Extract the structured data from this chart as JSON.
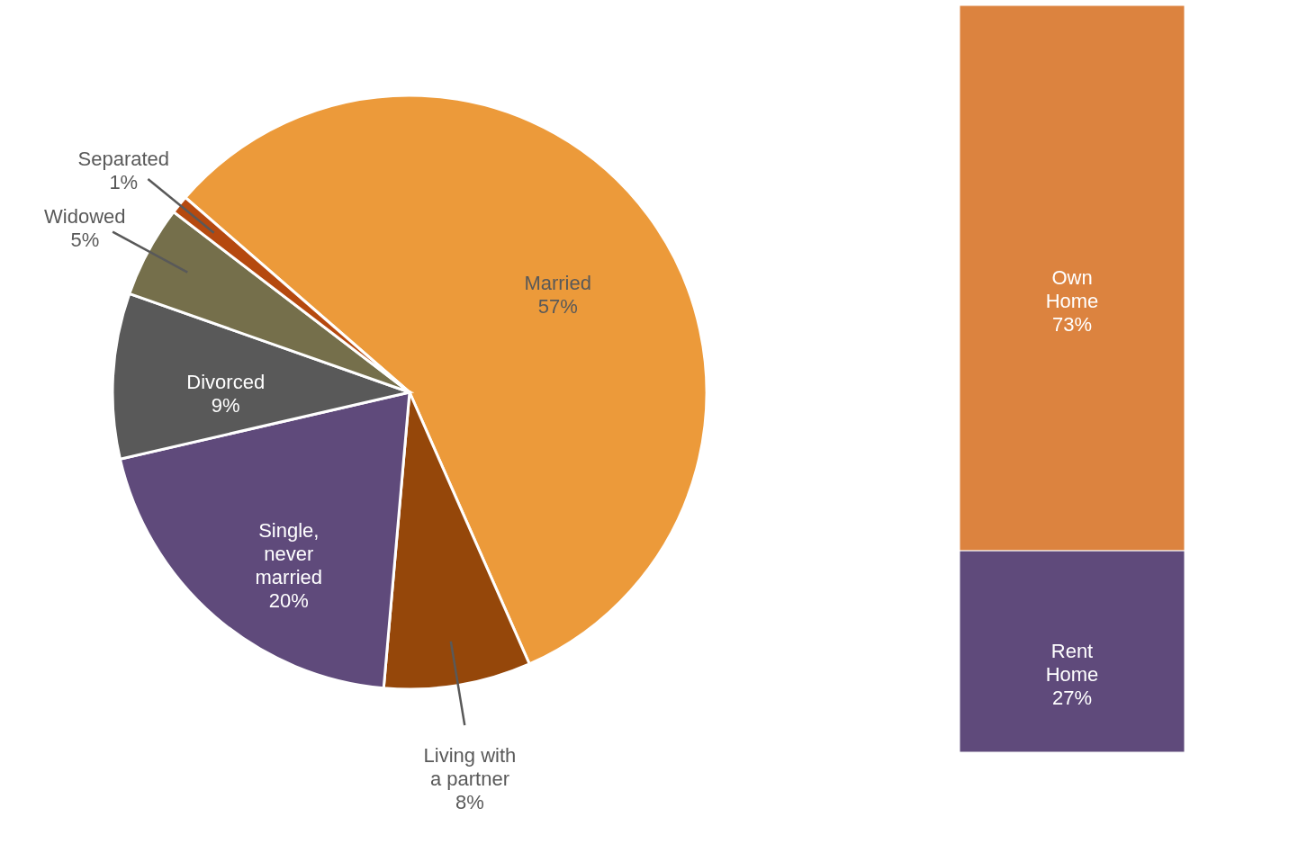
{
  "chart_data": [
    {
      "type": "pie",
      "categories": [
        "Married",
        "Living with a partner",
        "Single, never married",
        "Divorced",
        "Widowed",
        "Separated"
      ],
      "values": [
        57,
        8,
        20,
        9,
        5,
        1
      ],
      "colors": [
        "#ec9a3a",
        "#95470a",
        "#5f4a7b",
        "#595959",
        "#756f4b",
        "#b5490f"
      ],
      "value_labels": [
        "57%",
        "8%",
        "20%",
        "9%",
        "5%",
        "1%"
      ],
      "legend": false
    },
    {
      "type": "bar",
      "stacked": true,
      "categories": [
        null
      ],
      "ylim": [
        0,
        100
      ],
      "tick_labels": false,
      "legend": false,
      "series": [
        {
          "name": "Rent Home",
          "color": "#5f4a7b",
          "values": [
            27
          ],
          "value_labels": [
            "27%"
          ]
        },
        {
          "name": "Own Home",
          "color": "#dc833f",
          "values": [
            73
          ],
          "value_labels": [
            "73%"
          ]
        }
      ]
    }
  ]
}
